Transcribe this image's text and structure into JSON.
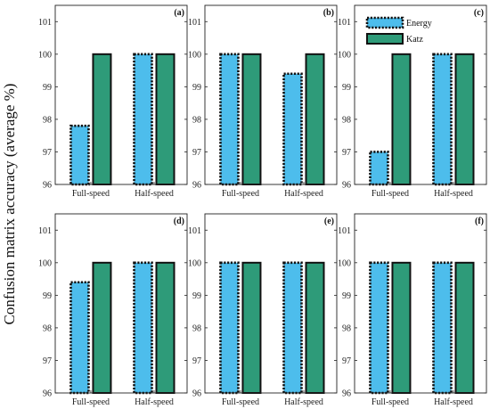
{
  "colors": {
    "energy_fill": "#4DBDEC",
    "katz_fill": "#2E9B79",
    "axis": "#222222",
    "bar_border": "#111111"
  },
  "chart_data": {
    "type": "bar",
    "ylabel": "Confusion matrix accuracy (average %)",
    "ylim": [
      96,
      101.5
    ],
    "yticks": [
      96,
      97,
      98,
      99,
      100,
      101
    ],
    "categories": [
      "Full-speed",
      "Half-speed"
    ],
    "legend": {
      "entries": [
        "Energy",
        "Katz"
      ],
      "placement": "top-right",
      "panel": "(c)"
    },
    "panels": [
      {
        "tag": "(a)",
        "series": [
          {
            "name": "Energy",
            "values": [
              97.8,
              100
            ]
          },
          {
            "name": "Katz",
            "values": [
              100,
              100
            ]
          }
        ]
      },
      {
        "tag": "(b)",
        "series": [
          {
            "name": "Energy",
            "values": [
              100,
              99.4
            ]
          },
          {
            "name": "Katz",
            "values": [
              100,
              100
            ]
          }
        ]
      },
      {
        "tag": "(c)",
        "series": [
          {
            "name": "Energy",
            "values": [
              97.0,
              100
            ]
          },
          {
            "name": "Katz",
            "values": [
              100,
              100
            ]
          }
        ]
      },
      {
        "tag": "(d)",
        "series": [
          {
            "name": "Energy",
            "values": [
              99.4,
              100
            ]
          },
          {
            "name": "Katz",
            "values": [
              100,
              100
            ]
          }
        ]
      },
      {
        "tag": "(e)",
        "series": [
          {
            "name": "Energy",
            "values": [
              100,
              100
            ]
          },
          {
            "name": "Katz",
            "values": [
              100,
              100
            ]
          }
        ]
      },
      {
        "tag": "(f)",
        "series": [
          {
            "name": "Energy",
            "values": [
              100,
              100
            ]
          },
          {
            "name": "Katz",
            "values": [
              100,
              100
            ]
          }
        ]
      }
    ]
  }
}
